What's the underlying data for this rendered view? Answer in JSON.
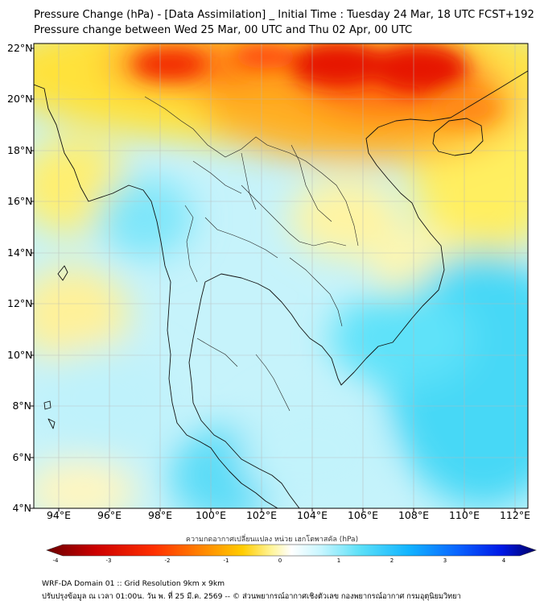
{
  "header": {
    "title_line1": "Pressure Change (hPa) - [Data Assimilation] _ Initial Time : Tuesday 24 Mar, 18 UTC FCST+192",
    "title_line2": "Pressure change between Wed 25 Mar, 00 UTC and Thu 02 Apr, 00 UTC"
  },
  "map": {
    "lat_labels": [
      "22°N",
      "20°N",
      "18°N",
      "16°N",
      "14°N",
      "12°N",
      "10°N",
      "8°N",
      "6°N",
      "4°N"
    ],
    "lon_labels": [
      "94°E",
      "96°E",
      "98°E",
      "100°E",
      "102°E",
      "104°E",
      "106°E",
      "108°E",
      "110°E",
      "112°E"
    ],
    "lat_range": [
      4,
      22
    ],
    "lon_range": [
      93,
      112.5
    ],
    "grid": true
  },
  "colorbar": {
    "title": "ความกดอากาศเปลี่ยนแปลง หน่วย เฮกโตพาสคัล (hPa)",
    "ticks": [
      "-4",
      "-3",
      "-2",
      "-1",
      "0",
      "1",
      "2",
      "3",
      "4"
    ],
    "range": [
      -4,
      4
    ],
    "colors": [
      "#6b0000",
      "#cc0000",
      "#ff3000",
      "#ff8800",
      "#ffcc00",
      "#fff59a",
      "#ffffff",
      "#c8f6ff",
      "#5ce0f8",
      "#12b4ff",
      "#0a64ff",
      "#0018e6",
      "#000066"
    ]
  },
  "footer": {
    "line1": "WRF-DA Domain 01 :: Grid Resolution 9km x 9km",
    "line2": "ปรับปรุงข้อมูล ณ เวลา 01:00น. วัน พ. ที่ 25 มี.ค. 2569 -- © ส่วนพยากรณ์อากาศเชิงตัวเลข กองพยากรณ์อากาศ กรมอุตุนิยมวิทยา"
  }
}
